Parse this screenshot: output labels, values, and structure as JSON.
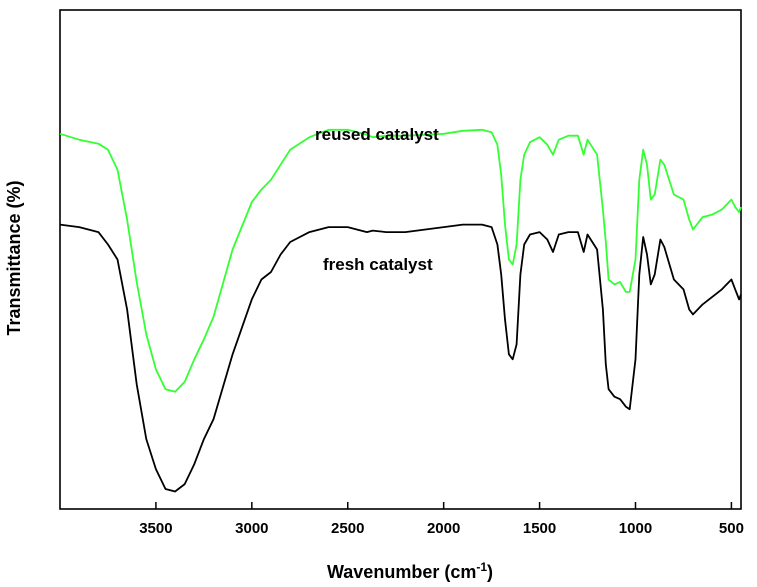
{
  "chart_data": {
    "type": "line",
    "title": "",
    "xlabel": "Wavenumber (cm",
    "xlabel_superscript": "-1",
    "xlabel_suffix": ")",
    "ylabel": "Transmittance (%)",
    "xlim": [
      4000,
      450
    ],
    "ylim": [
      0,
      100
    ],
    "x_reversed": true,
    "y_ticks_shown": false,
    "grid": false,
    "legend": "inline labels",
    "x_ticks": [
      3500,
      3000,
      2500,
      2000,
      1500,
      1000,
      500
    ],
    "x_tick_labels": [
      "3500",
      "3000",
      "2500",
      "2000",
      "1500",
      "1000",
      "500"
    ],
    "series": [
      {
        "name": "reused catalyst",
        "color": "#33ff33",
        "points": [
          [
            4000,
            75.2
          ],
          [
            3900,
            74.0
          ],
          [
            3800,
            73.2
          ],
          [
            3750,
            72.0
          ],
          [
            3700,
            68.0
          ],
          [
            3650,
            58.0
          ],
          [
            3600,
            45.5
          ],
          [
            3550,
            35.0
          ],
          [
            3500,
            28.0
          ],
          [
            3450,
            24.0
          ],
          [
            3400,
            23.5
          ],
          [
            3350,
            25.5
          ],
          [
            3300,
            30.0
          ],
          [
            3250,
            34.0
          ],
          [
            3200,
            38.5
          ],
          [
            3100,
            52.0
          ],
          [
            3000,
            61.5
          ],
          [
            2950,
            64.0
          ],
          [
            2900,
            66.0
          ],
          [
            2850,
            69.0
          ],
          [
            2800,
            72.0
          ],
          [
            2700,
            74.5
          ],
          [
            2600,
            76.0
          ],
          [
            2500,
            76.0
          ],
          [
            2400,
            75.0
          ],
          [
            2370,
            74.5
          ],
          [
            2300,
            74.8
          ],
          [
            2200,
            74.8
          ],
          [
            2100,
            75.0
          ],
          [
            2000,
            75.2
          ],
          [
            1900,
            75.8
          ],
          [
            1800,
            76.0
          ],
          [
            1750,
            75.5
          ],
          [
            1720,
            73.0
          ],
          [
            1700,
            67.0
          ],
          [
            1680,
            57.0
          ],
          [
            1660,
            50.0
          ],
          [
            1640,
            49.0
          ],
          [
            1620,
            53.0
          ],
          [
            1600,
            66.0
          ],
          [
            1580,
            71.0
          ],
          [
            1550,
            73.5
          ],
          [
            1500,
            74.5
          ],
          [
            1460,
            73.0
          ],
          [
            1430,
            71.0
          ],
          [
            1400,
            74.0
          ],
          [
            1350,
            74.8
          ],
          [
            1300,
            74.8
          ],
          [
            1270,
            71.0
          ],
          [
            1250,
            74.0
          ],
          [
            1200,
            71.0
          ],
          [
            1170,
            60.0
          ],
          [
            1155,
            53.5
          ],
          [
            1140,
            46.0
          ],
          [
            1110,
            45.0
          ],
          [
            1080,
            45.5
          ],
          [
            1050,
            43.5
          ],
          [
            1030,
            43.5
          ],
          [
            1000,
            50.0
          ],
          [
            980,
            66.0
          ],
          [
            960,
            72.0
          ],
          [
            940,
            69.0
          ],
          [
            920,
            62.0
          ],
          [
            900,
            63.0
          ],
          [
            870,
            70.0
          ],
          [
            850,
            69.0
          ],
          [
            800,
            63.0
          ],
          [
            750,
            62.0
          ],
          [
            720,
            58.0
          ],
          [
            700,
            56.0
          ],
          [
            650,
            58.5
          ],
          [
            600,
            59.0
          ],
          [
            550,
            60.0
          ],
          [
            500,
            62.0
          ],
          [
            480,
            60.5
          ],
          [
            460,
            59.5
          ],
          [
            450,
            60.5
          ]
        ]
      },
      {
        "name": "fresh catalyst",
        "color": "#000000",
        "points": [
          [
            4000,
            57.0
          ],
          [
            3900,
            56.5
          ],
          [
            3800,
            55.5
          ],
          [
            3750,
            53.0
          ],
          [
            3700,
            50.0
          ],
          [
            3650,
            40.0
          ],
          [
            3600,
            25.0
          ],
          [
            3550,
            14.0
          ],
          [
            3500,
            8.0
          ],
          [
            3450,
            4.0
          ],
          [
            3400,
            3.5
          ],
          [
            3350,
            5.0
          ],
          [
            3300,
            9.0
          ],
          [
            3250,
            14.0
          ],
          [
            3200,
            18.0
          ],
          [
            3100,
            31.0
          ],
          [
            3000,
            42.0
          ],
          [
            2950,
            46.0
          ],
          [
            2900,
            47.5
          ],
          [
            2850,
            51.0
          ],
          [
            2800,
            53.5
          ],
          [
            2700,
            55.5
          ],
          [
            2600,
            56.5
          ],
          [
            2500,
            56.5
          ],
          [
            2400,
            55.5
          ],
          [
            2370,
            55.8
          ],
          [
            2300,
            55.5
          ],
          [
            2200,
            55.5
          ],
          [
            2100,
            56.0
          ],
          [
            2000,
            56.5
          ],
          [
            1900,
            57.0
          ],
          [
            1800,
            57.0
          ],
          [
            1750,
            56.5
          ],
          [
            1720,
            53.0
          ],
          [
            1700,
            47.0
          ],
          [
            1680,
            38.0
          ],
          [
            1660,
            31.0
          ],
          [
            1640,
            30.0
          ],
          [
            1620,
            33.0
          ],
          [
            1600,
            47.0
          ],
          [
            1580,
            53.0
          ],
          [
            1550,
            55.0
          ],
          [
            1500,
            55.5
          ],
          [
            1460,
            54.0
          ],
          [
            1430,
            51.5
          ],
          [
            1400,
            55.0
          ],
          [
            1350,
            55.5
          ],
          [
            1300,
            55.5
          ],
          [
            1270,
            51.5
          ],
          [
            1250,
            55.0
          ],
          [
            1200,
            52.0
          ],
          [
            1170,
            40.0
          ],
          [
            1155,
            29.0
          ],
          [
            1140,
            24.0
          ],
          [
            1110,
            22.5
          ],
          [
            1080,
            22.0
          ],
          [
            1050,
            20.5
          ],
          [
            1030,
            20.0
          ],
          [
            1000,
            30.0
          ],
          [
            980,
            47.0
          ],
          [
            960,
            54.5
          ],
          [
            940,
            51.0
          ],
          [
            920,
            45.0
          ],
          [
            900,
            47.0
          ],
          [
            870,
            54.0
          ],
          [
            850,
            52.5
          ],
          [
            800,
            46.0
          ],
          [
            750,
            44.0
          ],
          [
            720,
            40.0
          ],
          [
            700,
            39.0
          ],
          [
            650,
            41.0
          ],
          [
            600,
            42.5
          ],
          [
            550,
            44.0
          ],
          [
            500,
            46.0
          ],
          [
            480,
            44.0
          ],
          [
            460,
            42.0
          ],
          [
            450,
            43.0
          ]
        ]
      }
    ]
  }
}
